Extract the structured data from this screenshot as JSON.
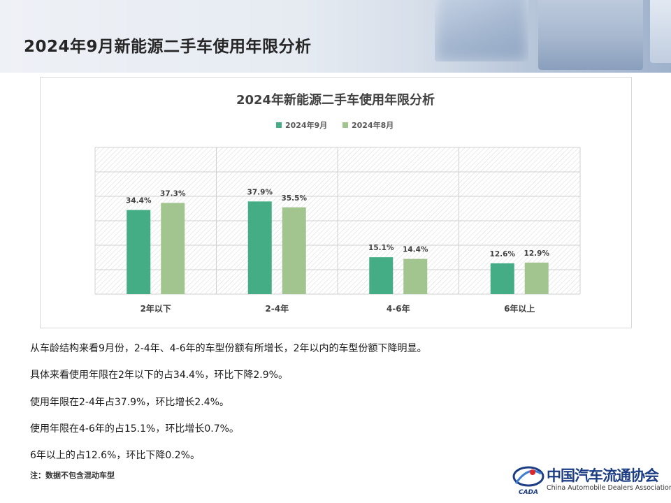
{
  "page": {
    "title": "2024年9月新能源二手车使用年限分析"
  },
  "paragraphs": [
    "从车龄结构来看9月份，2-4年、4-6年的车型份额有所增长，2年以内的车型份额下降明显。",
    "具体来看使用年限在2年以下的占34.4%，环比下降2.9%。",
    "使用年限在2-4年占37.9%，环比增长2.4%。",
    "使用年限在4-6年的占15.1%，环比增长0.7%。",
    "6年以上的占12.6%，环比下降0.2%。"
  ],
  "note": "注：数据不包含混动车型",
  "logo": {
    "abbr": "CADA",
    "name_cn": "中国汽车流通协会",
    "name_en": "China Automobile Dealers Association"
  },
  "chart_data": {
    "type": "bar",
    "title": "2024年新能源二手车使用年限分析",
    "categories": [
      "2年以下",
      "2-4年",
      "4-6年",
      "6年以上"
    ],
    "series": [
      {
        "name": "2024年9月",
        "values": [
          34.4,
          37.9,
          15.1,
          12.6
        ],
        "labels": [
          "34.4%",
          "37.9%",
          "15.1%",
          "12.6%"
        ],
        "color": "#45ad85"
      },
      {
        "name": "2024年8月",
        "values": [
          37.3,
          35.5,
          14.4,
          12.9
        ],
        "labels": [
          "37.3%",
          "35.5%",
          "14.4%",
          "12.9%"
        ],
        "color": "#a2c590"
      }
    ],
    "ylim": [
      0,
      60
    ],
    "legend_position": "top",
    "grid": true,
    "y_axis_labels_shown": false,
    "plot_background": "hatched"
  }
}
